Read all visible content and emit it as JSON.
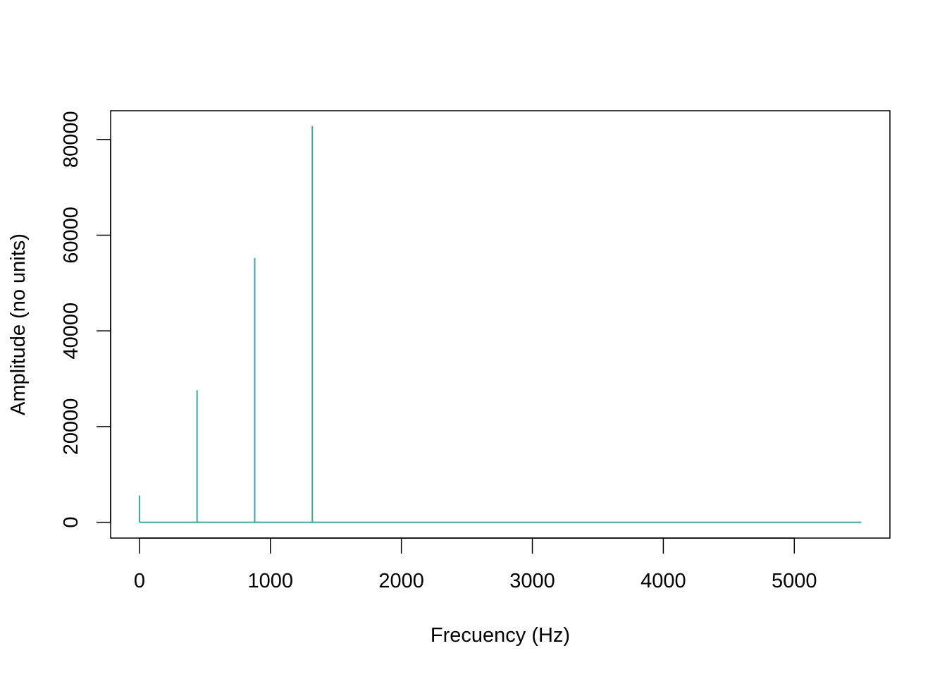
{
  "chart_data": {
    "type": "line",
    "title": "",
    "xlabel": "Frecuency (Hz)",
    "ylabel": "Amplitude (no units)",
    "xlim": [
      -220,
      5730
    ],
    "ylim": [
      -3300,
      86000
    ],
    "x_ticks": [
      0,
      1000,
      2000,
      3000,
      4000,
      5000
    ],
    "x_tick_labels": [
      "0",
      "1000",
      "2000",
      "3000",
      "4000",
      "5000"
    ],
    "y_ticks": [
      0,
      20000,
      40000,
      60000,
      80000
    ],
    "y_tick_labels": [
      "0",
      "20000",
      "40000",
      "60000",
      "80000"
    ],
    "grid": false,
    "legend": "none",
    "series_color": "#3aa6a6",
    "spikes": [
      {
        "x": 0,
        "y": 5600
      },
      {
        "x": 440,
        "y": 27600
      },
      {
        "x": 880,
        "y": 55200
      },
      {
        "x": 1320,
        "y": 82800
      }
    ],
    "baseline": {
      "x_start": 0,
      "x_end": 5512,
      "y": 0
    }
  }
}
